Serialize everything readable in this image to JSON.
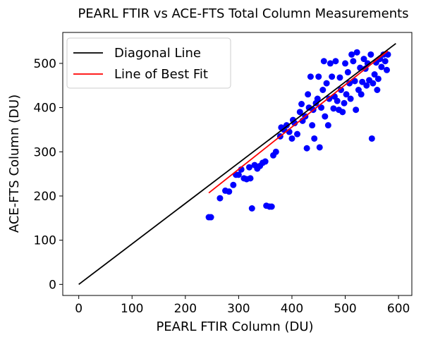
{
  "chart_data": {
    "type": "scatter",
    "title": "PEARL FTIR vs ACE-FTS Total Column Measurements",
    "xlabel": "PEARL FTIR Column (DU)",
    "ylabel": "ACE-FTS Column (DU)",
    "xlim": [
      -30,
      625
    ],
    "ylim": [
      -25,
      570
    ],
    "xticks": [
      0,
      100,
      200,
      300,
      400,
      500,
      600
    ],
    "yticks": [
      0,
      100,
      200,
      300,
      400,
      500
    ],
    "grid": false,
    "legend": {
      "position": "top-left",
      "entries": [
        {
          "label": "Diagonal Line",
          "color": "#000000"
        },
        {
          "label": "Line of Best Fit",
          "color": "#ff0000"
        }
      ]
    },
    "series": [
      {
        "kind": "points",
        "color": "#0000ff",
        "points": [
          [
            244,
            152
          ],
          [
            248,
            152
          ],
          [
            265,
            195
          ],
          [
            275,
            212
          ],
          [
            282,
            210
          ],
          [
            290,
            225
          ],
          [
            295,
            248
          ],
          [
            300,
            248
          ],
          [
            305,
            260
          ],
          [
            310,
            240
          ],
          [
            315,
            238
          ],
          [
            320,
            265
          ],
          [
            322,
            240
          ],
          [
            325,
            172
          ],
          [
            330,
            270
          ],
          [
            335,
            262
          ],
          [
            340,
            268
          ],
          [
            345,
            275
          ],
          [
            350,
            278
          ],
          [
            352,
            178
          ],
          [
            358,
            176
          ],
          [
            362,
            176
          ],
          [
            365,
            292
          ],
          [
            370,
            300
          ],
          [
            378,
            335
          ],
          [
            380,
            355
          ],
          [
            385,
            350
          ],
          [
            390,
            360
          ],
          [
            395,
            345
          ],
          [
            400,
            330
          ],
          [
            402,
            372
          ],
          [
            405,
            365
          ],
          [
            410,
            340
          ],
          [
            415,
            390
          ],
          [
            418,
            408
          ],
          [
            420,
            370
          ],
          [
            425,
            380
          ],
          [
            428,
            308
          ],
          [
            430,
            430
          ],
          [
            432,
            400
          ],
          [
            435,
            470
          ],
          [
            438,
            360
          ],
          [
            440,
            395
          ],
          [
            442,
            330
          ],
          [
            445,
            410
          ],
          [
            448,
            420
          ],
          [
            450,
            470
          ],
          [
            452,
            310
          ],
          [
            455,
            400
          ],
          [
            458,
            440
          ],
          [
            460,
            505
          ],
          [
            462,
            380
          ],
          [
            465,
            455
          ],
          [
            468,
            360
          ],
          [
            470,
            420
          ],
          [
            472,
            500
          ],
          [
            475,
            470
          ],
          [
            478,
            398
          ],
          [
            480,
            425
          ],
          [
            482,
            505
          ],
          [
            485,
            415
          ],
          [
            488,
            395
          ],
          [
            490,
            468
          ],
          [
            492,
            440
          ],
          [
            495,
            390
          ],
          [
            498,
            410
          ],
          [
            500,
            500
          ],
          [
            502,
            430
          ],
          [
            505,
            480
          ],
          [
            508,
            455
          ],
          [
            510,
            420
          ],
          [
            512,
            520
          ],
          [
            515,
            505
          ],
          [
            518,
            460
          ],
          [
            520,
            395
          ],
          [
            522,
            525
          ],
          [
            525,
            440
          ],
          [
            528,
            490
          ],
          [
            530,
            430
          ],
          [
            532,
            458
          ],
          [
            535,
            510
          ],
          [
            538,
            488
          ],
          [
            540,
            450
          ],
          [
            542,
            500
          ],
          [
            545,
            462
          ],
          [
            548,
            520
          ],
          [
            550,
            330
          ],
          [
            552,
            455
          ],
          [
            555,
            475
          ],
          [
            558,
            502
          ],
          [
            560,
            440
          ],
          [
            562,
            465
          ],
          [
            565,
            510
          ],
          [
            568,
            492
          ],
          [
            572,
            520
          ],
          [
            575,
            505
          ],
          [
            578,
            485
          ],
          [
            580,
            520
          ]
        ]
      },
      {
        "kind": "line",
        "name": "Diagonal Line",
        "color": "#000000",
        "points": [
          [
            0,
            0
          ],
          [
            595,
            545
          ]
        ]
      },
      {
        "kind": "line",
        "name": "Line of Best Fit",
        "color": "#ff0000",
        "points": [
          [
            244,
            207
          ],
          [
            580,
            528
          ]
        ]
      }
    ]
  }
}
